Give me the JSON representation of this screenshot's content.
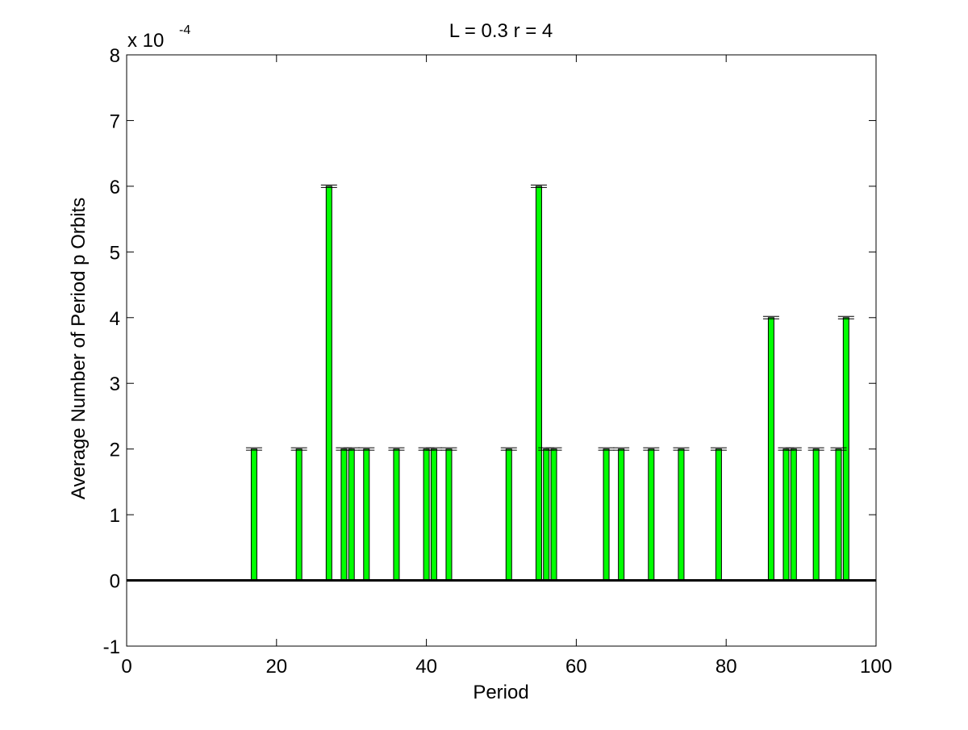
{
  "chart_data": {
    "type": "bar",
    "title": "L = 0.3 r = 4",
    "xlabel": "Period",
    "ylabel": "Average Number of Period p Orbits",
    "y_multiplier": {
      "base": "x 10",
      "exponent": "-4",
      "value": 0.0001
    },
    "xlim": [
      0,
      100
    ],
    "ylim": [
      -1,
      8
    ],
    "x_ticks": [
      0,
      20,
      40,
      60,
      80,
      100
    ],
    "y_ticks": [
      -1,
      0,
      1,
      2,
      3,
      4,
      5,
      6,
      7,
      8
    ],
    "grid": false,
    "bar_color": "#00ff00",
    "edge_color": "#000000",
    "errorbar_color": "#000000",
    "bars": [
      {
        "x": 17,
        "value": 2
      },
      {
        "x": 23,
        "value": 2
      },
      {
        "x": 27,
        "value": 6
      },
      {
        "x": 29,
        "value": 2
      },
      {
        "x": 30,
        "value": 2
      },
      {
        "x": 32,
        "value": 2
      },
      {
        "x": 36,
        "value": 2
      },
      {
        "x": 40,
        "value": 2
      },
      {
        "x": 41,
        "value": 2
      },
      {
        "x": 43,
        "value": 2
      },
      {
        "x": 51,
        "value": 2
      },
      {
        "x": 55,
        "value": 6
      },
      {
        "x": 56,
        "value": 2
      },
      {
        "x": 57,
        "value": 2
      },
      {
        "x": 64,
        "value": 2
      },
      {
        "x": 66,
        "value": 2
      },
      {
        "x": 70,
        "value": 2
      },
      {
        "x": 74,
        "value": 2
      },
      {
        "x": 79,
        "value": 2
      },
      {
        "x": 86,
        "value": 4
      },
      {
        "x": 88,
        "value": 2
      },
      {
        "x": 89,
        "value": 2
      },
      {
        "x": 92,
        "value": 2
      },
      {
        "x": 95,
        "value": 2
      },
      {
        "x": 96,
        "value": 4
      }
    ]
  }
}
